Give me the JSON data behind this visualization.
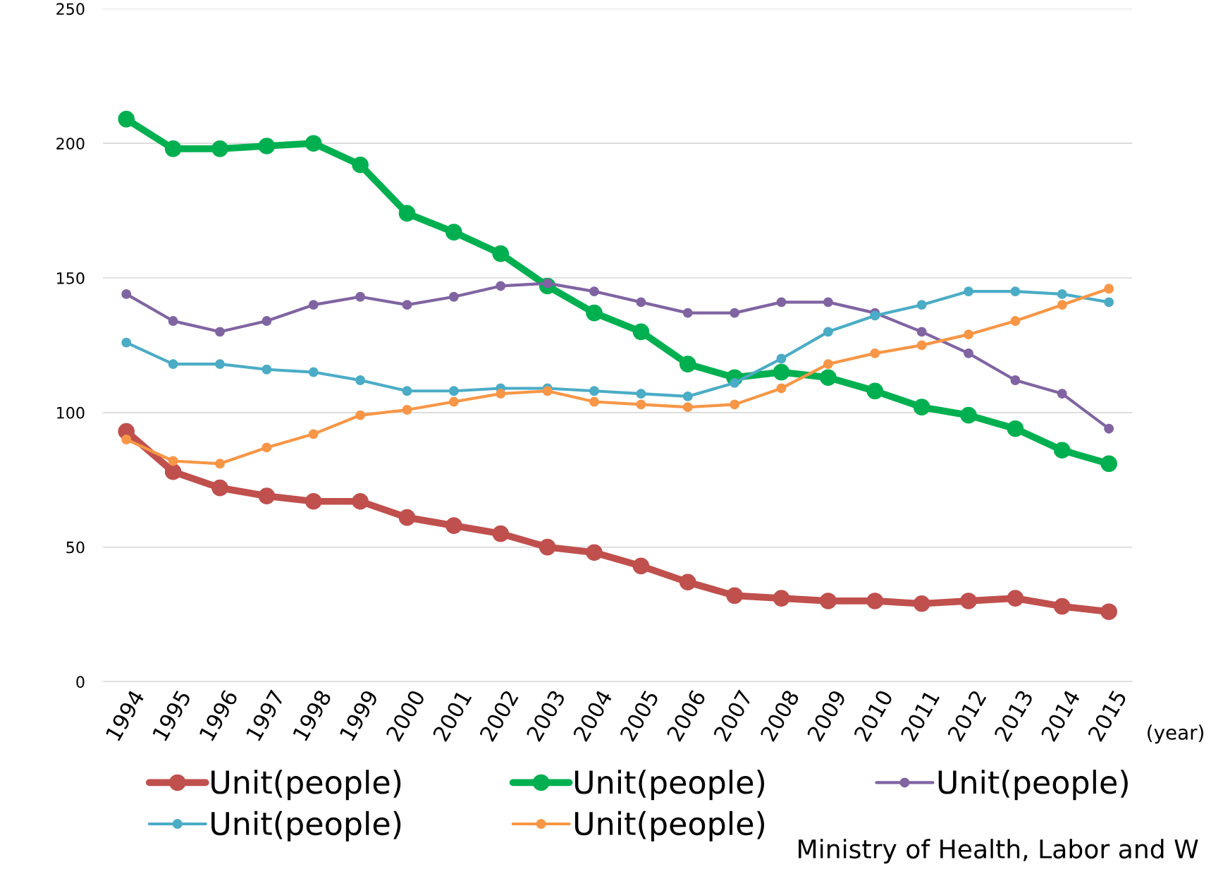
{
  "chart_data": {
    "type": "line",
    "categories": [
      "1994",
      "1995",
      "1996",
      "1997",
      "1998",
      "1999",
      "2000",
      "2001",
      "2002",
      "2003",
      "2004",
      "2005",
      "2006",
      "2007",
      "2008",
      "2009",
      "2010",
      "2011",
      "2012",
      "2013",
      "2014",
      "2015"
    ],
    "series": [
      {
        "name": "Unit(people)",
        "color": "#c0504d",
        "values": [
          93,
          78,
          72,
          69,
          67,
          67,
          61,
          58,
          55,
          50,
          48,
          43,
          37,
          32,
          31,
          30,
          30,
          29,
          30,
          31,
          28,
          26
        ]
      },
      {
        "name": "Unit(people)",
        "color": "#00b050",
        "values": [
          209,
          198,
          198,
          199,
          200,
          192,
          174,
          167,
          159,
          147,
          137,
          130,
          118,
          113,
          115,
          113,
          108,
          102,
          99,
          94,
          86,
          81
        ]
      },
      {
        "name": "Unit(people)",
        "color": "#8064a2",
        "values": [
          144,
          134,
          130,
          134,
          140,
          143,
          140,
          143,
          147,
          148,
          145,
          141,
          137,
          137,
          141,
          141,
          137,
          130,
          122,
          112,
          107,
          94
        ]
      },
      {
        "name": "Unit(people)",
        "color": "#4bacc6",
        "values": [
          126,
          118,
          118,
          116,
          115,
          112,
          108,
          108,
          109,
          109,
          108,
          107,
          106,
          111,
          120,
          130,
          136,
          140,
          145,
          145,
          144,
          141
        ]
      },
      {
        "name": "Unit(people)",
        "color": "#f79646",
        "values": [
          90,
          82,
          81,
          87,
          92,
          99,
          101,
          104,
          107,
          108,
          104,
          103,
          102,
          103,
          109,
          118,
          122,
          125,
          129,
          134,
          140,
          146
        ]
      }
    ],
    "ylim": [
      0,
      250
    ],
    "yticks": [
      0,
      50,
      100,
      150,
      200,
      250
    ],
    "grid": "y",
    "legend": "bottom",
    "marker": "circle",
    "line_style": "solid",
    "annotations": [
      "(year)",
      "Ministry of Health, Labor and W"
    ]
  }
}
